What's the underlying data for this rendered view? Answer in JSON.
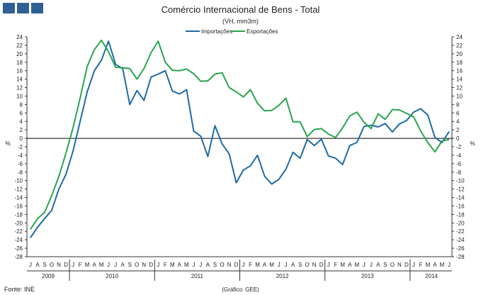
{
  "header": {
    "title": "Comércio Internacional de Bens - Total",
    "subtitle": "(VH, mm3m)"
  },
  "footer": {
    "source": "Fonte: INE",
    "credit": "(Gráfico: GEE)"
  },
  "colors": {
    "logo": "#2f5f94",
    "axis": "#333333",
    "zero_line": "#000000"
  },
  "chart_data": {
    "type": "line",
    "title": "Comércio Internacional de Bens - Total",
    "subtitle": "(VH, mm3m)",
    "ylabel_left": "%",
    "ylabel_right": "%",
    "ylim": [
      -28,
      24
    ],
    "y_ticks": [
      24,
      22,
      20,
      18,
      16,
      14,
      12,
      10,
      8,
      6,
      4,
      2,
      0,
      -2,
      -4,
      -6,
      -8,
      -10,
      -12,
      -14,
      -16,
      -18,
      -20,
      -22,
      -24,
      -26,
      -28
    ],
    "legend_position": "top-center",
    "grid": false,
    "x_months": [
      "J",
      "A",
      "S",
      "O",
      "N",
      "D",
      "J",
      "F",
      "M",
      "A",
      "M",
      "J",
      "J",
      "A",
      "S",
      "O",
      "N",
      "D",
      "J",
      "F",
      "M",
      "A",
      "M",
      "J",
      "J",
      "A",
      "S",
      "O",
      "N",
      "D",
      "J",
      "F",
      "M",
      "A",
      "M",
      "J",
      "J",
      "A",
      "S",
      "O",
      "N",
      "D",
      "J",
      "F",
      "M",
      "A",
      "M",
      "J",
      "J",
      "A",
      "S",
      "O",
      "N",
      "D",
      "J",
      "F",
      "M",
      "A",
      "M",
      "J"
    ],
    "x_years": [
      {
        "label": "2009",
        "start": 0,
        "end": 6
      },
      {
        "label": "2010",
        "start": 6,
        "end": 18
      },
      {
        "label": "2011",
        "start": 18,
        "end": 30
      },
      {
        "label": "2012",
        "start": 30,
        "end": 42
      },
      {
        "label": "2013",
        "start": 42,
        "end": 54
      },
      {
        "label": "2014",
        "start": 54,
        "end": 60
      }
    ],
    "series": [
      {
        "name": "Importações",
        "color": "#1f6aa5",
        "values": [
          -23.5,
          -21,
          -19,
          -17,
          -12,
          -8.5,
          -3,
          4,
          11,
          16,
          18.5,
          23,
          17.5,
          16.5,
          8,
          11.3,
          9,
          14.5,
          15.2,
          16,
          11.2,
          10.5,
          11.5,
          1.7,
          0.5,
          -4.3,
          3,
          -1.3,
          -3.7,
          -10.5,
          -7.5,
          -6.5,
          -4,
          -9,
          -10.8,
          -9.7,
          -7.3,
          -3.3,
          -4.7,
          -0.3,
          -1.7,
          -0.2,
          -4.2,
          -4.7,
          -6.2,
          -1.7,
          -1,
          2.8,
          3.1,
          2.7,
          3.5,
          1.5,
          3.4,
          4.2,
          6.2,
          7,
          5.5,
          0.2,
          -1,
          1.6
        ]
      },
      {
        "name": "Exportações",
        "color": "#2aa44f",
        "values": [
          -21.5,
          -19,
          -17.5,
          -13.5,
          -9,
          -3.5,
          2.5,
          9.5,
          17,
          21,
          23.2,
          20.5,
          16.8,
          16.7,
          16.5,
          14,
          16.5,
          20.3,
          23,
          18,
          16.1,
          16,
          16.4,
          15.3,
          13.5,
          13.6,
          15.2,
          15.5,
          12,
          11,
          9.8,
          11.5,
          8.3,
          6.5,
          6.6,
          7.8,
          9.5,
          3.9,
          3.9,
          0.4,
          2.1,
          2.3,
          1,
          0.2,
          2.5,
          5.3,
          6.2,
          3.8,
          2.3,
          5.8,
          4.5,
          6.8,
          6.7,
          5.9,
          5.1,
          1.7,
          -1,
          -3.2,
          -0.6,
          -0.3
        ]
      }
    ]
  }
}
